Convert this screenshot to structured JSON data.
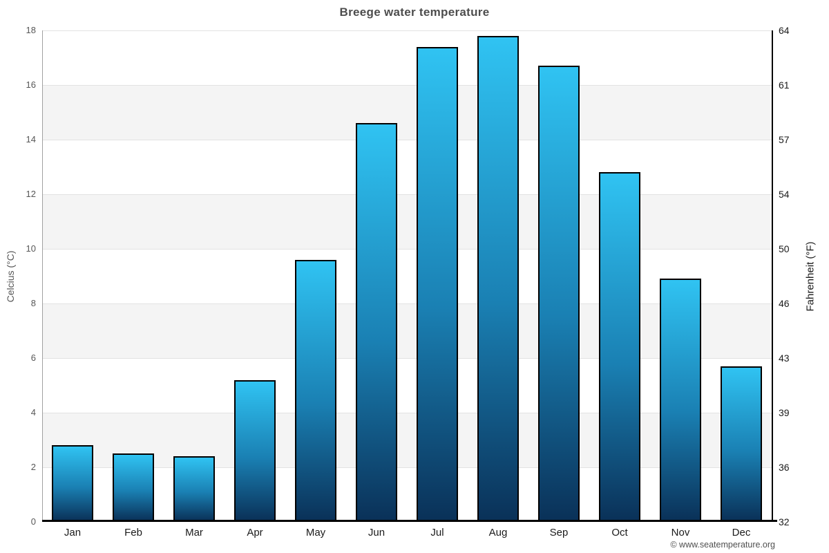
{
  "chart": {
    "title": "Breege water temperature",
    "left_axis_title": "Celcius (°C)",
    "right_axis_title": "Fahrenheit (°F)",
    "credit": "© www.seatemperature.org"
  },
  "chart_data": {
    "type": "bar",
    "title": "Breege water temperature",
    "categories": [
      "Jan",
      "Feb",
      "Mar",
      "Apr",
      "May",
      "Jun",
      "Jul",
      "Aug",
      "Sep",
      "Oct",
      "Nov",
      "Dec"
    ],
    "values": [
      2.8,
      2.5,
      2.4,
      5.2,
      9.6,
      14.6,
      17.4,
      17.8,
      16.7,
      12.8,
      8.9,
      5.7
    ],
    "xlabel": "",
    "ylabel_left": "Celcius (°C)",
    "ylabel_right": "Fahrenheit (°F)",
    "ylim": [
      0,
      18
    ],
    "yticks_celsius": [
      0,
      2,
      4,
      6,
      8,
      10,
      12,
      14,
      16,
      18
    ],
    "yticks_fahrenheit": [
      32,
      36,
      39,
      43,
      46,
      50,
      54,
      57,
      61,
      64
    ],
    "grid": true,
    "legend": false,
    "band_color": "#f4f4f4",
    "gridline_color": "#e2e2e2",
    "bar_gradient_top": "#30c3f2",
    "bar_gradient_mid": "#1a80b3",
    "bar_gradient_bottom": "#0a3158",
    "bar_border_color": "#000000",
    "title_color": "#4d4d4d"
  }
}
